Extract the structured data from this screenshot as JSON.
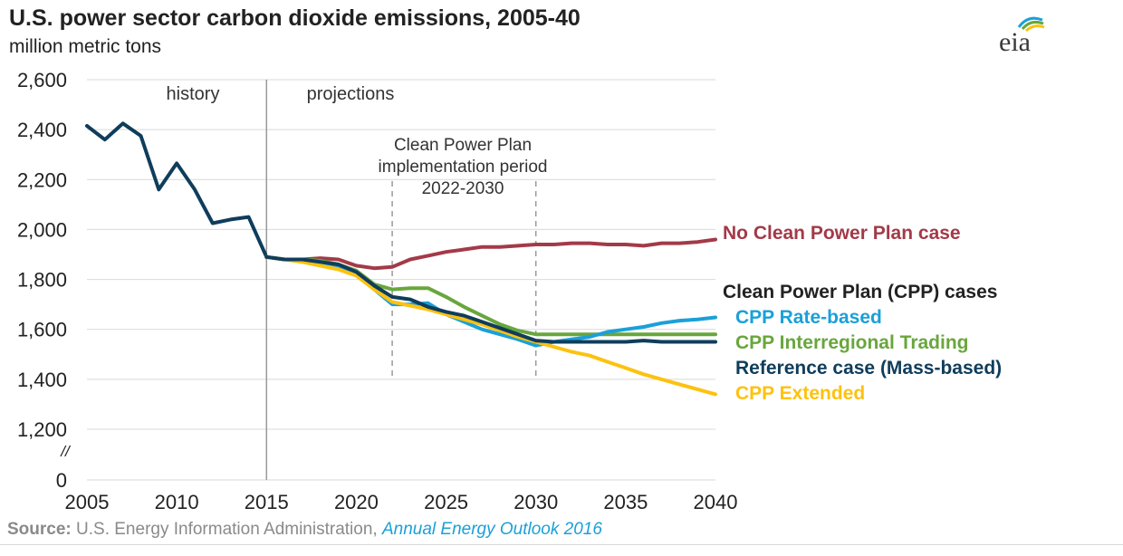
{
  "header": {
    "title": "U.S. power sector carbon dioxide emissions, 2005-40",
    "subtitle": "million metric tons",
    "logo_text": "eia"
  },
  "source": {
    "label": "Source:",
    "agency": "U.S. Energy Information Administration,",
    "publication": "Annual Energy Outlook 2016"
  },
  "colors": {
    "history": "#0f3d5c",
    "reference": "#0f3d5c",
    "no_cpp": "#a33a48",
    "cpp_rate": "#1ba0d8",
    "cpp_interregional": "#69a63d",
    "cpp_extended": "#fdc20f",
    "group_label": "#222222",
    "grid": "#d9d9d9",
    "divider": "#9a9a9a"
  },
  "chart_data": {
    "type": "line",
    "ylabel": "million metric tons",
    "xlim": [
      2005,
      2040
    ],
    "ylim": [
      1200,
      2600
    ],
    "y_axis_break": true,
    "y_break_label": "0",
    "x_ticks": [
      2005,
      2010,
      2015,
      2020,
      2025,
      2030,
      2035,
      2040
    ],
    "x_tick_labels": [
      "2005",
      "2010",
      "2015",
      "2020",
      "2025",
      "2030",
      "2035",
      "2040"
    ],
    "y_ticks": [
      1200,
      1400,
      1600,
      1800,
      2000,
      2200,
      2400,
      2600
    ],
    "y_tick_labels": [
      "1,200",
      "1,400",
      "1,600",
      "1,800",
      "2,000",
      "2,200",
      "2,400",
      "2,600"
    ],
    "grid": true,
    "annotations": {
      "history": "history",
      "projections": "projections",
      "implementation_line1": "Clean Power Plan",
      "implementation_line2": "implementation period",
      "implementation_line3": "2022-2030",
      "history_divider_x": 2015,
      "implementation_start": 2022,
      "implementation_end": 2030
    },
    "legend": {
      "group_heading": "Clean Power Plan (CPP) cases",
      "placement": "right"
    },
    "series": [
      {
        "key": "history",
        "name": "",
        "color_key": "history",
        "x": [
          2005,
          2006,
          2007,
          2008,
          2009,
          2010,
          2011,
          2012,
          2013,
          2014,
          2015
        ],
        "y": [
          2415,
          2360,
          2425,
          2375,
          2160,
          2265,
          2160,
          2025,
          2040,
          2050,
          1890
        ]
      },
      {
        "key": "no_cpp",
        "name": "No Clean Power Plan case",
        "color_key": "no_cpp",
        "x": [
          2015,
          2016,
          2017,
          2018,
          2019,
          2020,
          2021,
          2022,
          2023,
          2024,
          2025,
          2026,
          2027,
          2028,
          2029,
          2030,
          2031,
          2032,
          2033,
          2034,
          2035,
          2036,
          2037,
          2038,
          2039,
          2040
        ],
        "y": [
          1890,
          1880,
          1880,
          1885,
          1880,
          1855,
          1845,
          1850,
          1880,
          1895,
          1910,
          1920,
          1930,
          1930,
          1935,
          1940,
          1940,
          1945,
          1945,
          1940,
          1940,
          1935,
          1945,
          1945,
          1950,
          1960
        ]
      },
      {
        "key": "cpp_rate",
        "name": "CPP Rate-based",
        "color_key": "cpp_rate",
        "x": [
          2015,
          2016,
          2017,
          2018,
          2019,
          2020,
          2021,
          2022,
          2023,
          2024,
          2025,
          2026,
          2027,
          2028,
          2029,
          2030,
          2031,
          2032,
          2033,
          2034,
          2035,
          2036,
          2037,
          2038,
          2039,
          2040
        ],
        "y": [
          1890,
          1880,
          1880,
          1870,
          1855,
          1830,
          1760,
          1700,
          1700,
          1705,
          1660,
          1630,
          1600,
          1580,
          1560,
          1535,
          1550,
          1560,
          1570,
          1590,
          1600,
          1610,
          1625,
          1635,
          1640,
          1648
        ]
      },
      {
        "key": "cpp_interregional",
        "name": "CPP Interregional Trading",
        "color_key": "cpp_interregional",
        "x": [
          2015,
          2016,
          2017,
          2018,
          2019,
          2020,
          2021,
          2022,
          2023,
          2024,
          2025,
          2026,
          2027,
          2028,
          2029,
          2030,
          2031,
          2032,
          2033,
          2034,
          2035,
          2036,
          2037,
          2038,
          2039,
          2040
        ],
        "y": [
          1890,
          1880,
          1880,
          1875,
          1860,
          1835,
          1780,
          1760,
          1765,
          1765,
          1730,
          1690,
          1655,
          1620,
          1595,
          1580,
          1580,
          1580,
          1580,
          1580,
          1580,
          1580,
          1580,
          1580,
          1580,
          1580
        ]
      },
      {
        "key": "reference",
        "name": "Reference case (Mass-based)",
        "color_key": "reference",
        "x": [
          2015,
          2016,
          2017,
          2018,
          2019,
          2020,
          2021,
          2022,
          2023,
          2024,
          2025,
          2026,
          2027,
          2028,
          2029,
          2030,
          2031,
          2032,
          2033,
          2034,
          2035,
          2036,
          2037,
          2038,
          2039,
          2040
        ],
        "y": [
          1890,
          1880,
          1880,
          1870,
          1860,
          1830,
          1775,
          1730,
          1720,
          1690,
          1670,
          1655,
          1630,
          1605,
          1580,
          1555,
          1550,
          1550,
          1550,
          1550,
          1550,
          1555,
          1550,
          1550,
          1550,
          1550
        ]
      },
      {
        "key": "cpp_extended",
        "name": "CPP Extended",
        "color_key": "cpp_extended",
        "x": [
          2015,
          2016,
          2017,
          2018,
          2019,
          2020,
          2021,
          2022,
          2023,
          2024,
          2025,
          2026,
          2027,
          2028,
          2029,
          2030,
          2031,
          2032,
          2033,
          2034,
          2035,
          2036,
          2037,
          2038,
          2039,
          2040
        ],
        "y": [
          1890,
          1880,
          1870,
          1855,
          1840,
          1815,
          1760,
          1710,
          1695,
          1680,
          1660,
          1640,
          1620,
          1595,
          1570,
          1550,
          1530,
          1510,
          1495,
          1470,
          1445,
          1420,
          1400,
          1380,
          1360,
          1340
        ]
      }
    ]
  }
}
